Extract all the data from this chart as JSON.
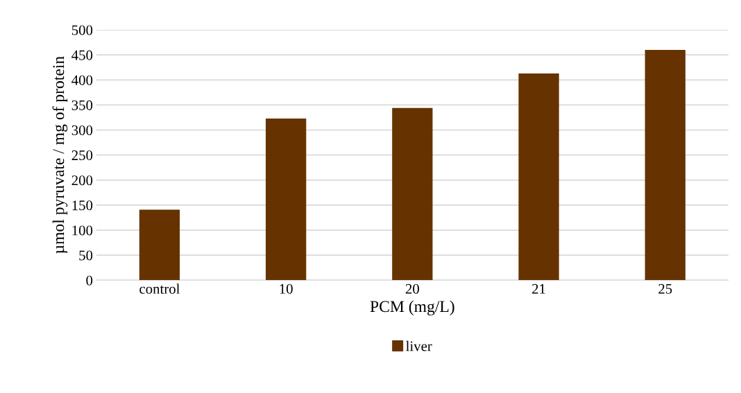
{
  "chart_data": {
    "type": "bar",
    "xlabel": "PCM (mg/L)",
    "ylabel": "µmol pyruvate / mg of protein",
    "categories": [
      "control",
      "10",
      "20",
      "21",
      "25"
    ],
    "series": [
      {
        "name": "liver",
        "color": "#663300",
        "values": [
          141,
          323,
          344,
          413,
          460
        ]
      }
    ],
    "ylim": [
      0,
      500
    ],
    "yticks": [
      0,
      50,
      100,
      150,
      200,
      250,
      300,
      350,
      400,
      450,
      500
    ],
    "grid": "y",
    "legend": "bottom"
  }
}
